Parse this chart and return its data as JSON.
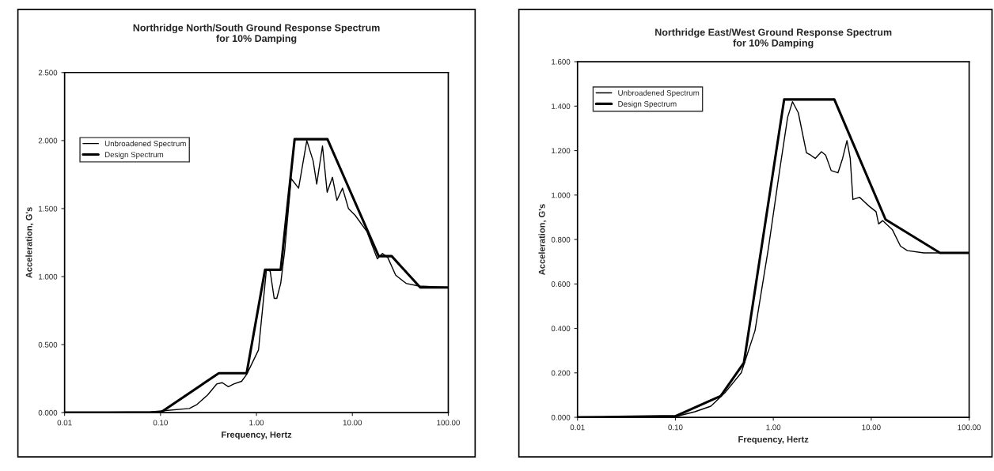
{
  "chart_data": [
    {
      "type": "line",
      "title": "Northridge North/South Ground Response Spectrum\nfor 10% Damping",
      "xlabel": "Frequency, Hertz",
      "ylabel": "Acceleration, G's",
      "log": "x",
      "xlim": [
        0.01,
        100
      ],
      "xticks": [
        {
          "value": 0.01,
          "label": "0.01"
        },
        {
          "value": 0.1,
          "label": "0.10"
        },
        {
          "value": 1,
          "label": "1.00"
        },
        {
          "value": 10,
          "label": "10.00"
        },
        {
          "value": 100,
          "label": "100.00"
        }
      ],
      "ylim": [
        0,
        2.5
      ],
      "yticks": [
        {
          "value": 0,
          "label": "0.000"
        },
        {
          "value": 0.5,
          "label": "0.500"
        },
        {
          "value": 1,
          "label": "1.000"
        },
        {
          "value": 1.5,
          "label": "1.500"
        },
        {
          "value": 2,
          "label": "2.000"
        },
        {
          "value": 2.5,
          "label": "2.500"
        }
      ],
      "legend": "top left",
      "grid": false,
      "series": [
        {
          "name": "Unbroadened Spectrum",
          "color": "#000000",
          "x": [
            0.01,
            0.078,
            0.2,
            0.24,
            0.31,
            0.385,
            0.44,
            0.51,
            0.58,
            0.7,
            0.79,
            1.05,
            1.27,
            1.39,
            1.53,
            1.63,
            1.79,
            1.97,
            2.3,
            2.75,
            3.35,
            3.9,
            4.25,
            4.88,
            5.46,
            6.2,
            6.9,
            7.9,
            9.1,
            10.7,
            14.2,
            18.2,
            20.6,
            23.4,
            28.3,
            36.3,
            49.6,
            100
          ],
          "values": [
            0,
            0.005,
            0.03,
            0.06,
            0.13,
            0.21,
            0.22,
            0.19,
            0.21,
            0.23,
            0.28,
            0.46,
            1.05,
            1.04,
            0.84,
            0.84,
            0.95,
            1.19,
            1.72,
            1.65,
            2.0,
            1.85,
            1.68,
            1.96,
            1.62,
            1.73,
            1.56,
            1.65,
            1.5,
            1.45,
            1.33,
            1.13,
            1.17,
            1.14,
            1.01,
            0.95,
            0.93,
            0.92
          ]
        },
        {
          "name": "Design Spectrum",
          "color": "#000000",
          "x": [
            0.01,
            0.1,
            0.405,
            0.79,
            1.23,
            1.79,
            2.5,
            5.5,
            18.8,
            25.7,
            51,
            100
          ],
          "values": [
            0,
            0,
            0.29,
            0.29,
            1.05,
            1.05,
            2.01,
            2.01,
            1.15,
            1.15,
            0.92,
            0.92
          ]
        }
      ]
    },
    {
      "type": "line",
      "title": "Northridge East/West Ground Response Spectrum\nfor 10% Damping",
      "xlabel": "Frequency, Hertz",
      "ylabel": "Acceleration, G's",
      "log": "x",
      "xlim": [
        0.01,
        100
      ],
      "xticks": [
        {
          "value": 0.01,
          "label": "0.01"
        },
        {
          "value": 0.1,
          "label": "0.10"
        },
        {
          "value": 1,
          "label": "1.00"
        },
        {
          "value": 10,
          "label": "10.00"
        },
        {
          "value": 100,
          "label": "100.00"
        }
      ],
      "ylim": [
        0,
        1.6
      ],
      "yticks": [
        {
          "value": 0,
          "label": "0.000"
        },
        {
          "value": 0.2,
          "label": "0.200"
        },
        {
          "value": 0.4,
          "label": "0.400"
        },
        {
          "value": 0.6,
          "label": "0.600"
        },
        {
          "value": 0.8,
          "label": "0.800"
        },
        {
          "value": 1,
          "label": "1.000"
        },
        {
          "value": 1.2,
          "label": "1.200"
        },
        {
          "value": 1.4,
          "label": "1.400"
        },
        {
          "value": 1.6,
          "label": "1.600"
        }
      ],
      "legend": "top left",
      "grid": false,
      "series": [
        {
          "name": "Unbroadened Spectrum",
          "color": "#000000",
          "x": [
            0.01,
            0.073,
            0.1,
            0.158,
            0.23,
            0.32,
            0.47,
            0.65,
            0.89,
            1.15,
            1.4,
            1.57,
            1.8,
            2.18,
            2.4,
            2.68,
            3.1,
            3.42,
            3.9,
            4.57,
            5.1,
            5.65,
            6.1,
            6.5,
            7.6,
            9.5,
            11.2,
            11.9,
            13.1,
            16.4,
            19.9,
            23.4,
            34.4,
            100
          ],
          "values": [
            0,
            0,
            0.003,
            0.025,
            0.05,
            0.11,
            0.2,
            0.39,
            0.76,
            1.1,
            1.35,
            1.42,
            1.37,
            1.19,
            1.18,
            1.165,
            1.195,
            1.18,
            1.11,
            1.1,
            1.165,
            1.245,
            1.165,
            0.98,
            0.99,
            0.95,
            0.925,
            0.87,
            0.885,
            0.845,
            0.77,
            0.75,
            0.74,
            0.74
          ]
        },
        {
          "name": "Design Spectrum",
          "color": "#000000",
          "x": [
            0.01,
            0.1,
            0.29,
            0.5,
            1.29,
            4.2,
            14.0,
            50.4,
            100
          ],
          "values": [
            0,
            0.005,
            0.096,
            0.245,
            1.43,
            1.43,
            0.89,
            0.74,
            0.74
          ]
        }
      ]
    }
  ]
}
